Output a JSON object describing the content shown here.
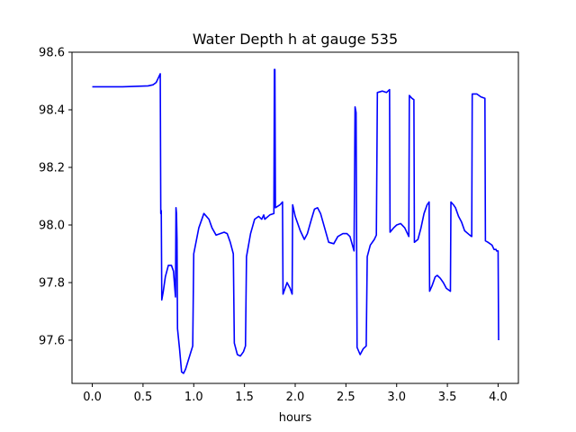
{
  "chart_data": {
    "type": "line",
    "title": "Water Depth h at gauge 535",
    "xlabel": "hours",
    "ylabel": "",
    "xlim": [
      -0.2,
      4.2
    ],
    "ylim": [
      97.45,
      98.6
    ],
    "xticks": [
      0.0,
      0.5,
      1.0,
      1.5,
      2.0,
      2.5,
      3.0,
      3.5,
      4.0
    ],
    "xtick_labels": [
      "0.0",
      "0.5",
      "1.0",
      "1.5",
      "2.0",
      "2.5",
      "3.0",
      "3.5",
      "4.0"
    ],
    "yticks": [
      97.6,
      97.8,
      98.0,
      98.2,
      98.4,
      98.6
    ],
    "ytick_labels": [
      "97.6",
      "97.8",
      "98.0",
      "98.2",
      "98.4",
      "98.6"
    ],
    "grid": false,
    "legend": "none",
    "series": [
      {
        "color": "#0000ff",
        "points": [
          [
            0.0,
            98.48
          ],
          [
            0.3,
            98.48
          ],
          [
            0.55,
            98.483
          ],
          [
            0.6,
            98.487
          ],
          [
            0.63,
            98.495
          ],
          [
            0.65,
            98.51
          ],
          [
            0.67,
            98.525
          ],
          [
            0.675,
            98.04
          ],
          [
            0.68,
            98.05
          ],
          [
            0.685,
            97.74
          ],
          [
            0.7,
            97.77
          ],
          [
            0.72,
            97.82
          ],
          [
            0.75,
            97.86
          ],
          [
            0.78,
            97.86
          ],
          [
            0.8,
            97.84
          ],
          [
            0.82,
            97.75
          ],
          [
            0.825,
            98.06
          ],
          [
            0.83,
            98.04
          ],
          [
            0.835,
            97.95
          ],
          [
            0.84,
            97.64
          ],
          [
            0.86,
            97.57
          ],
          [
            0.88,
            97.49
          ],
          [
            0.9,
            97.485
          ],
          [
            0.92,
            97.5
          ],
          [
            0.99,
            97.58
          ],
          [
            1.0,
            97.9
          ],
          [
            1.05,
            97.99
          ],
          [
            1.1,
            98.04
          ],
          [
            1.15,
            98.02
          ],
          [
            1.18,
            97.99
          ],
          [
            1.22,
            97.965
          ],
          [
            1.26,
            97.97
          ],
          [
            1.3,
            97.975
          ],
          [
            1.33,
            97.97
          ],
          [
            1.36,
            97.94
          ],
          [
            1.39,
            97.9
          ],
          [
            1.4,
            97.59
          ],
          [
            1.43,
            97.55
          ],
          [
            1.46,
            97.545
          ],
          [
            1.49,
            97.56
          ],
          [
            1.51,
            97.58
          ],
          [
            1.52,
            97.89
          ],
          [
            1.56,
            97.97
          ],
          [
            1.6,
            98.02
          ],
          [
            1.64,
            98.03
          ],
          [
            1.67,
            98.02
          ],
          [
            1.69,
            98.035
          ],
          [
            1.7,
            98.02
          ],
          [
            1.75,
            98.035
          ],
          [
            1.79,
            98.04
          ],
          [
            1.795,
            98.54
          ],
          [
            1.8,
            98.54
          ],
          [
            1.805,
            98.06
          ],
          [
            1.85,
            98.07
          ],
          [
            1.875,
            98.08
          ],
          [
            1.88,
            97.76
          ],
          [
            1.92,
            97.8
          ],
          [
            1.95,
            97.78
          ],
          [
            1.97,
            97.76
          ],
          [
            1.975,
            98.07
          ],
          [
            2.0,
            98.03
          ],
          [
            2.05,
            97.98
          ],
          [
            2.09,
            97.95
          ],
          [
            2.12,
            97.97
          ],
          [
            2.16,
            98.02
          ],
          [
            2.19,
            98.055
          ],
          [
            2.22,
            98.06
          ],
          [
            2.25,
            98.04
          ],
          [
            2.29,
            97.99
          ],
          [
            2.33,
            97.94
          ],
          [
            2.38,
            97.935
          ],
          [
            2.42,
            97.96
          ],
          [
            2.47,
            97.97
          ],
          [
            2.51,
            97.97
          ],
          [
            2.54,
            97.96
          ],
          [
            2.58,
            97.91
          ],
          [
            2.59,
            98.41
          ],
          [
            2.6,
            98.39
          ],
          [
            2.61,
            97.575
          ],
          [
            2.64,
            97.55
          ],
          [
            2.67,
            97.57
          ],
          [
            2.7,
            97.58
          ],
          [
            2.71,
            97.89
          ],
          [
            2.74,
            97.93
          ],
          [
            2.78,
            97.95
          ],
          [
            2.8,
            97.965
          ],
          [
            2.81,
            98.46
          ],
          [
            2.86,
            98.465
          ],
          [
            2.9,
            98.46
          ],
          [
            2.93,
            98.47
          ],
          [
            2.935,
            97.975
          ],
          [
            2.97,
            97.99
          ],
          [
            3.0,
            98.0
          ],
          [
            3.04,
            98.005
          ],
          [
            3.08,
            97.99
          ],
          [
            3.12,
            97.96
          ],
          [
            3.125,
            98.45
          ],
          [
            3.15,
            98.44
          ],
          [
            3.17,
            98.435
          ],
          [
            3.175,
            97.94
          ],
          [
            3.21,
            97.95
          ],
          [
            3.24,
            97.99
          ],
          [
            3.27,
            98.04
          ],
          [
            3.3,
            98.07
          ],
          [
            3.32,
            98.08
          ],
          [
            3.325,
            97.77
          ],
          [
            3.35,
            97.79
          ],
          [
            3.38,
            97.82
          ],
          [
            3.4,
            97.825
          ],
          [
            3.43,
            97.815
          ],
          [
            3.46,
            97.8
          ],
          [
            3.49,
            97.78
          ],
          [
            3.53,
            97.77
          ],
          [
            3.535,
            98.08
          ],
          [
            3.56,
            98.07
          ],
          [
            3.58,
            98.06
          ],
          [
            3.61,
            98.03
          ],
          [
            3.64,
            98.01
          ],
          [
            3.67,
            97.98
          ],
          [
            3.72,
            97.965
          ],
          [
            3.74,
            97.96
          ],
          [
            3.745,
            98.455
          ],
          [
            3.79,
            98.455
          ],
          [
            3.83,
            98.445
          ],
          [
            3.87,
            98.44
          ],
          [
            3.875,
            97.945
          ],
          [
            3.9,
            97.94
          ],
          [
            3.94,
            97.93
          ],
          [
            3.96,
            97.915
          ],
          [
            3.98,
            97.915
          ],
          [
            3.985,
            97.91
          ],
          [
            4.0,
            97.91
          ],
          [
            4.005,
            97.6
          ]
        ]
      }
    ]
  }
}
